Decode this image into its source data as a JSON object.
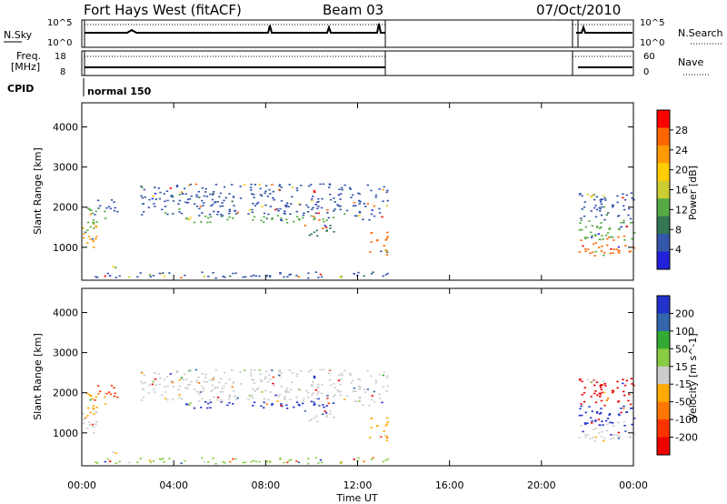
{
  "header": {
    "title": "Fort Hays West (fitACF)",
    "beam": "Beam 03",
    "date": "07/Oct/2010"
  },
  "panels": {
    "nsky": {
      "label": "N.Sky",
      "right_label": "N.Search",
      "left_ticks": [
        "10^5",
        "10^0"
      ],
      "right_ticks": [
        "10^5",
        "10^0"
      ]
    },
    "freq": {
      "label": "Freq.",
      "unit": "[MHz]",
      "right_label": "Nave",
      "left_ticks": [
        "18",
        "8"
      ],
      "right_ticks": [
        "60",
        "0"
      ]
    },
    "cpid": {
      "label": "CPID",
      "mode": "normal 150"
    }
  },
  "chart_data": [
    {
      "type": "heatmap",
      "name": "power",
      "ylabel": "Slant Range [km]",
      "xlabel": "Time UT",
      "xlim": [
        0,
        24
      ],
      "ylim": [
        180,
        4600
      ],
      "xticks": [
        "00:00",
        "04:00",
        "08:00",
        "12:00",
        "16:00",
        "20:00",
        "00:00"
      ],
      "yticks": [
        1000,
        2000,
        3000,
        4000
      ],
      "colorbar": {
        "label": "Power [dB]",
        "ticks": [
          "28",
          "24",
          "20",
          "16",
          "12",
          "8",
          "4"
        ],
        "colors": [
          "#ff0000",
          "#ff6600",
          "#ff9900",
          "#ffcc00",
          "#cccc33",
          "#55aa44",
          "#337755",
          "#3355aa",
          "#2222dd"
        ]
      },
      "regions": [
        {
          "t0": 0.0,
          "t1": 0.6,
          "r0": 1000,
          "r1": 1700,
          "c": "#ff9900"
        },
        {
          "t0": 0.2,
          "t1": 1.0,
          "r0": 1400,
          "r1": 2000,
          "c": "#55aa44"
        },
        {
          "t0": 0.6,
          "t1": 1.8,
          "r0": 1900,
          "r1": 2200,
          "c": "#3355aa"
        },
        {
          "t0": 1.2,
          "t1": 1.6,
          "r0": 480,
          "r1": 700,
          "c": "#ffcc00"
        },
        {
          "t0": 2.5,
          "t1": 4.5,
          "r0": 1800,
          "r1": 2600,
          "c": "#3355aa"
        },
        {
          "t0": 4.5,
          "t1": 11.0,
          "r0": 1600,
          "r1": 1800,
          "c": "#55aa44"
        },
        {
          "t0": 4.5,
          "t1": 11.0,
          "r0": 1800,
          "r1": 2600,
          "c": "#3355aa"
        },
        {
          "t0": 9.5,
          "t1": 11.0,
          "r0": 1300,
          "r1": 1600,
          "c": "#337755"
        },
        {
          "t0": 11.0,
          "t1": 13.3,
          "r0": 1700,
          "r1": 2600,
          "c": "#3355aa"
        },
        {
          "t0": 12.4,
          "t1": 13.3,
          "r0": 700,
          "r1": 1400,
          "c": "#ff6600"
        },
        {
          "t0": 0.5,
          "t1": 13.3,
          "r0": 250,
          "r1": 400,
          "c": "#3355aa"
        },
        {
          "t0": 21.6,
          "t1": 24.0,
          "r0": 800,
          "r1": 1300,
          "c": "#ff6600"
        },
        {
          "t0": 21.6,
          "t1": 24.0,
          "r0": 1200,
          "r1": 1700,
          "c": "#55aa44"
        },
        {
          "t0": 21.6,
          "t1": 24.0,
          "r0": 1700,
          "r1": 2400,
          "c": "#3355aa"
        }
      ]
    },
    {
      "type": "heatmap",
      "name": "velocity",
      "ylabel": "Slant Range [km]",
      "xlabel": "Time UT",
      "xlim": [
        0,
        24
      ],
      "ylim": [
        180,
        4600
      ],
      "xticks": [
        "00:00",
        "04:00",
        "08:00",
        "12:00",
        "16:00",
        "20:00",
        "00:00"
      ],
      "yticks": [
        1000,
        2000,
        3000,
        4000
      ],
      "colorbar": {
        "label": "Velocity [m s^-1]",
        "ticks": [
          "200",
          "100",
          "50",
          "15",
          "-15",
          "-50",
          "-100",
          "-200"
        ],
        "colors": [
          "#2233cc",
          "#3366aa",
          "#33aa33",
          "#88cc44",
          "#cccccc",
          "#ffaa00",
          "#ff7700",
          "#ff3300",
          "#ee0000"
        ]
      },
      "regions": [
        {
          "t0": 0.0,
          "t1": 0.6,
          "r0": 1000,
          "r1": 1700,
          "c": "#cccccc"
        },
        {
          "t0": 0.2,
          "t1": 1.0,
          "r0": 1400,
          "r1": 2000,
          "c": "#ffaa00"
        },
        {
          "t0": 0.6,
          "t1": 1.8,
          "r0": 1900,
          "r1": 2200,
          "c": "#ff3300"
        },
        {
          "t0": 1.2,
          "t1": 1.6,
          "r0": 480,
          "r1": 700,
          "c": "#cccccc"
        },
        {
          "t0": 2.5,
          "t1": 4.5,
          "r0": 1800,
          "r1": 2600,
          "c": "#cccccc"
        },
        {
          "t0": 4.5,
          "t1": 11.0,
          "r0": 1600,
          "r1": 1800,
          "c": "#2233cc"
        },
        {
          "t0": 4.5,
          "t1": 11.0,
          "r0": 1800,
          "r1": 2600,
          "c": "#cccccc"
        },
        {
          "t0": 9.5,
          "t1": 11.0,
          "r0": 1300,
          "r1": 1600,
          "c": "#cccccc"
        },
        {
          "t0": 11.0,
          "t1": 13.3,
          "r0": 1700,
          "r1": 2600,
          "c": "#cccccc"
        },
        {
          "t0": 12.4,
          "t1": 13.3,
          "r0": 700,
          "r1": 1400,
          "c": "#ffaa00"
        },
        {
          "t0": 0.5,
          "t1": 13.3,
          "r0": 250,
          "r1": 400,
          "c": "#88cc44"
        },
        {
          "t0": 21.6,
          "t1": 24.0,
          "r0": 800,
          "r1": 1300,
          "c": "#cccccc"
        },
        {
          "t0": 21.6,
          "t1": 24.0,
          "r0": 1200,
          "r1": 1700,
          "c": "#2233cc"
        },
        {
          "t0": 21.6,
          "t1": 24.0,
          "r0": 1700,
          "r1": 2400,
          "c": "#ee0000"
        }
      ]
    }
  ]
}
